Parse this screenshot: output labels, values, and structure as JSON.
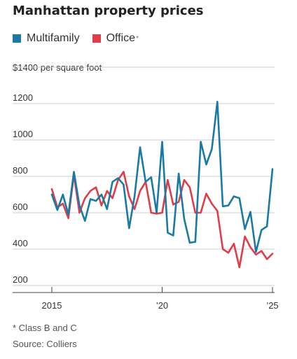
{
  "title": "Manhattan property prices",
  "legend": {
    "series_a": "Multifamily",
    "series_b": "Office",
    "series_b_mark": "*"
  },
  "unit_label": "$1400 per square foot",
  "footnote": "* Class B and C",
  "source": "Source: Colliers",
  "colors": {
    "multifamily": "#1a7aa6",
    "office": "#e03c4a",
    "grid": "#cfcfcf",
    "axis": "#444444"
  },
  "chart_data": {
    "type": "line",
    "title": "Manhattan property prices",
    "ylabel": "$1400 per square foot",
    "ylim": [
      200,
      1400
    ],
    "yticks": [
      200,
      400,
      600,
      800,
      1000,
      1200,
      1400
    ],
    "ytick_labels": [
      "200",
      "400",
      "600",
      "800",
      "1000",
      "1200",
      ""
    ],
    "xlim": [
      2015,
      2025
    ],
    "xticks": [
      2015,
      2020,
      2025
    ],
    "xtick_labels": [
      "2015",
      "’20",
      "’25"
    ],
    "grid": true,
    "legend_position": "top-left",
    "series": [
      {
        "name": "Multifamily",
        "color": "#1a7aa6",
        "x": [
          2015.0,
          2015.25,
          2015.5,
          2015.75,
          2016.0,
          2016.25,
          2016.5,
          2016.75,
          2017.0,
          2017.25,
          2017.5,
          2017.75,
          2018.0,
          2018.25,
          2018.5,
          2018.75,
          2019.0,
          2019.25,
          2019.5,
          2019.75,
          2020.0,
          2020.25,
          2020.5,
          2020.75,
          2021.0,
          2021.25,
          2021.5,
          2021.75,
          2022.0,
          2022.25,
          2022.5,
          2022.75,
          2023.0,
          2023.25,
          2023.5,
          2023.75,
          2024.0,
          2024.25,
          2024.5,
          2024.75,
          2025.0
        ],
        "values": [
          700,
          615,
          700,
          590,
          825,
          640,
          555,
          675,
          665,
          700,
          620,
          770,
          790,
          755,
          515,
          690,
          960,
          770,
          795,
          600,
          990,
          490,
          475,
          815,
          565,
          435,
          440,
          990,
          865,
          950,
          1210,
          635,
          640,
          690,
          680,
          510,
          605,
          385,
          505,
          525,
          840
        ]
      },
      {
        "name": "Office",
        "color": "#e03c4a",
        "x": [
          2015.0,
          2015.25,
          2015.5,
          2015.75,
          2016.0,
          2016.25,
          2016.5,
          2016.75,
          2017.0,
          2017.25,
          2017.5,
          2017.75,
          2018.0,
          2018.25,
          2018.5,
          2018.75,
          2019.0,
          2019.25,
          2019.5,
          2019.75,
          2020.0,
          2020.25,
          2020.5,
          2020.75,
          2021.0,
          2021.25,
          2021.5,
          2021.75,
          2022.0,
          2022.25,
          2022.5,
          2022.75,
          2023.0,
          2023.25,
          2023.5,
          2023.75,
          2024.0,
          2024.25,
          2024.5,
          2024.75,
          2025.0
        ],
        "values": [
          730,
          630,
          650,
          570,
          810,
          600,
          680,
          720,
          740,
          640,
          720,
          680,
          780,
          825,
          690,
          620,
          720,
          770,
          600,
          595,
          600,
          780,
          645,
          660,
          780,
          740,
          600,
          600,
          705,
          650,
          610,
          400,
          380,
          430,
          300,
          470,
          410,
          370,
          390,
          345,
          375
        ]
      }
    ]
  }
}
